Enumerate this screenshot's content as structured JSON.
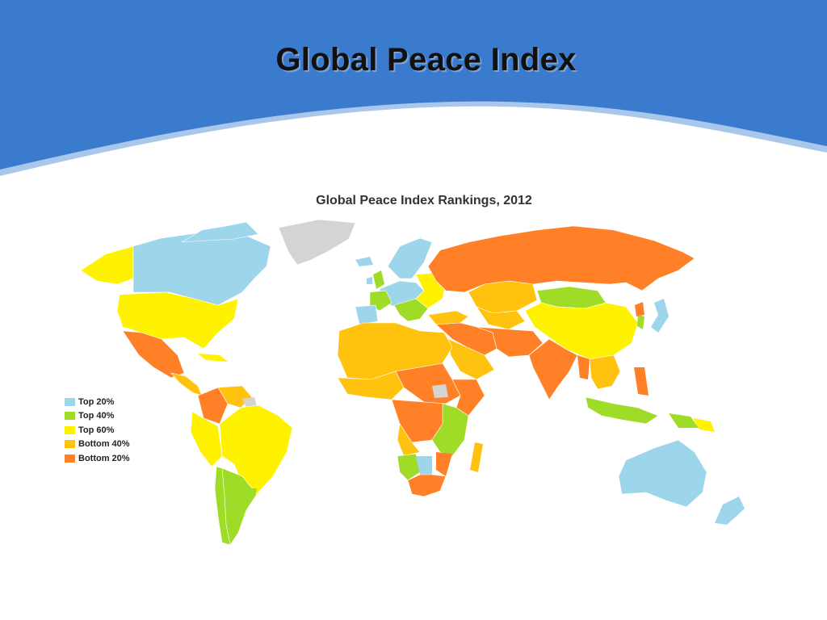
{
  "slide": {
    "title": "Global Peace Index"
  },
  "map": {
    "title": "Global Peace Index Rankings, 2012",
    "legend": [
      {
        "label": "Top 20%",
        "color": "#9dd6ea"
      },
      {
        "label": "Top 40%",
        "color": "#9fdc28"
      },
      {
        "label": "Top 60%",
        "color": "#fff200"
      },
      {
        "label": "Bottom 40%",
        "color": "#ffc20e"
      },
      {
        "label": "Bottom 20%",
        "color": "#ff8026"
      }
    ],
    "no_data_color": "#d4d4d4"
  },
  "colors": {
    "header_blue": "#3a7bcd",
    "header_stripe": "#a9c7ea"
  }
}
